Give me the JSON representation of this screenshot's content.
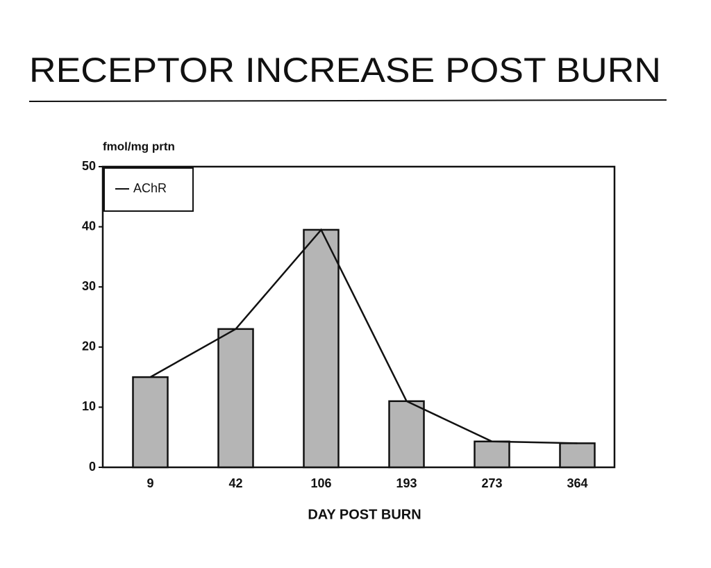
{
  "chart_data": {
    "type": "bar",
    "title": "RECEPTOR INCREASE POST BURN",
    "y_label": "fmol/mg prtn",
    "x_label": "DAY POST BURN",
    "categories": [
      "9",
      "42",
      "106",
      "193",
      "273",
      "364"
    ],
    "series": [
      {
        "name": "AChR",
        "color": "#b5b5b5",
        "values": [
          15,
          23,
          39.5,
          11,
          4.3,
          4
        ]
      }
    ],
    "line_overlay": true,
    "ylim": [
      0,
      50
    ],
    "yticks": [
      0,
      10,
      20,
      30,
      40,
      50
    ],
    "grid": false,
    "legend": "upper left"
  }
}
